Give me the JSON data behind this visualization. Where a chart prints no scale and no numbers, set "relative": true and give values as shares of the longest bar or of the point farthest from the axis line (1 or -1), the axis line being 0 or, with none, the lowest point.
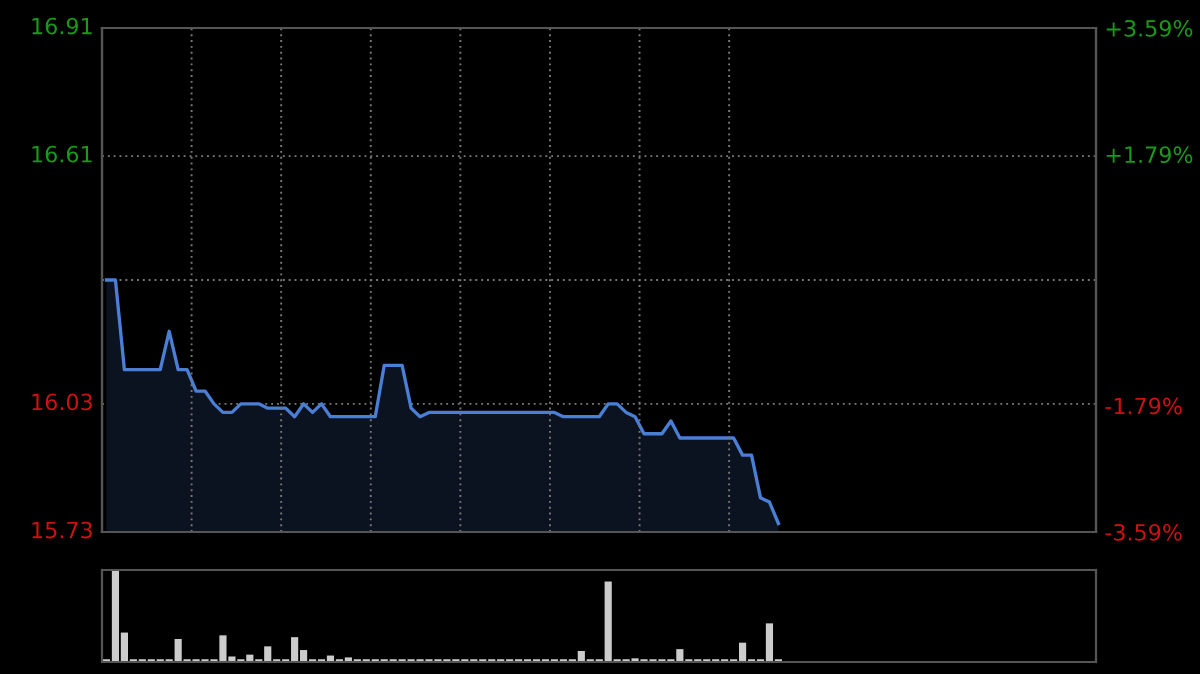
{
  "chart_data": [
    {
      "type": "area",
      "categories": [
        null,
        null,
        null,
        null,
        null,
        null,
        null,
        null,
        null,
        null,
        null,
        null,
        null,
        null,
        null,
        null,
        null,
        null,
        null,
        null,
        null,
        null,
        null,
        null,
        null,
        null,
        null,
        null,
        null,
        null,
        null,
        null,
        null,
        null,
        null,
        null,
        null,
        null,
        null,
        null,
        null,
        null,
        null,
        null,
        null,
        null,
        null,
        null,
        null,
        null,
        null,
        null,
        null,
        null,
        null,
        null,
        null,
        null,
        null,
        null,
        null,
        null,
        null,
        null,
        null,
        null,
        null,
        null,
        null,
        null,
        null,
        null,
        null,
        null,
        null,
        null
      ],
      "series": [
        {
          "color": "#4a7fd6",
          "values": [
            16.32,
            16.32,
            16.11,
            16.11,
            16.11,
            16.11,
            16.11,
            16.2,
            16.11,
            16.11,
            16.06,
            16.06,
            16.03,
            16.01,
            16.01,
            16.03,
            16.03,
            16.03,
            16.02,
            16.02,
            16.02,
            16.0,
            16.03,
            16.01,
            16.03,
            16.0,
            16.0,
            16.0,
            16.0,
            16.0,
            16.0,
            16.12,
            16.12,
            16.12,
            16.02,
            16.0,
            16.01,
            16.01,
            16.01,
            16.01,
            16.01,
            16.01,
            16.01,
            16.01,
            16.01,
            16.01,
            16.01,
            16.01,
            16.01,
            16.01,
            16.01,
            16.0,
            16.0,
            16.0,
            16.0,
            16.0,
            16.03,
            16.03,
            16.01,
            16.0,
            15.96,
            15.96,
            15.96,
            15.99,
            15.95,
            15.95,
            15.95,
            15.95,
            15.95,
            15.95,
            15.95,
            15.91,
            15.91,
            15.81,
            15.8,
            15.75
          ]
        }
      ],
      "ylim": [
        15.73,
        16.91
      ],
      "yticks": [
        15.73,
        16.03,
        {
          "value": 16.32,
          "label": null
        },
        16.61,
        16.91
      ],
      "y2lim": [
        -3.59,
        3.59
      ],
      "y2ticks": [
        {
          "value": -3.59,
          "label": "-3.59%"
        },
        {
          "value": -1.79,
          "label": "-1.79%"
        },
        {
          "value": 0,
          "label": null
        },
        {
          "value": 1.79,
          "label": "+1.79%"
        },
        {
          "value": 3.59,
          "label": "+3.59%"
        }
      ],
      "grid": true,
      "tick_labels": "y"
    },
    {
      "type": "bar",
      "relative": true,
      "categories": [
        null,
        null,
        null,
        null,
        null,
        null,
        null,
        null,
        null,
        null,
        null,
        null,
        null,
        null,
        null,
        null,
        null,
        null,
        null,
        null,
        null,
        null,
        null,
        null,
        null,
        null,
        null,
        null,
        null,
        null,
        null,
        null,
        null,
        null,
        null,
        null,
        null,
        null,
        null,
        null,
        null,
        null,
        null,
        null,
        null,
        null,
        null,
        null,
        null,
        null,
        null,
        null,
        null,
        null,
        null,
        null,
        null,
        null,
        null,
        null,
        null,
        null,
        null,
        null,
        null,
        null,
        null,
        null,
        null,
        null,
        null,
        null,
        null,
        null,
        null,
        null
      ],
      "series": [
        {
          "color": "#cccccc",
          "values": [
            0.03,
            1.0,
            0.32,
            0.03,
            0.03,
            0.03,
            0.03,
            0.03,
            0.25,
            0.03,
            0.03,
            0.03,
            0.03,
            0.29,
            0.06,
            0.03,
            0.08,
            0.03,
            0.17,
            0.03,
            0.03,
            0.27,
            0.13,
            0.03,
            0.03,
            0.07,
            0.03,
            0.05,
            0.03,
            0.03,
            0.03,
            0.03,
            0.03,
            0.03,
            0.03,
            0.03,
            0.03,
            0.03,
            0.03,
            0.03,
            0.03,
            0.03,
            0.03,
            0.03,
            0.03,
            0.03,
            0.03,
            0.03,
            0.03,
            0.03,
            0.03,
            0.03,
            0.03,
            0.12,
            0.03,
            0.03,
            0.875,
            0.03,
            0.03,
            0.04,
            0.03,
            0.03,
            0.03,
            0.03,
            0.14,
            0.03,
            0.03,
            0.03,
            0.03,
            0.03,
            0.03,
            0.21,
            0.03,
            0.03,
            0.42,
            0.03
          ]
        }
      ],
      "tick_labels": false
    }
  ]
}
